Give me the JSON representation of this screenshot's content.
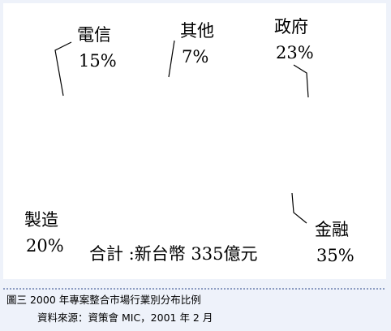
{
  "chart_data": {
    "type": "pie",
    "categories": [
      "政府",
      "金融",
      "製造",
      "電信",
      "其他"
    ],
    "values": [
      23,
      35,
      20,
      15,
      7
    ],
    "value_labels": [
      "23%",
      "35%",
      "20%",
      "15%",
      "7%"
    ],
    "colors": [
      "#000000",
      "#ffffff",
      "#6e6e6e",
      "#b4b4b4",
      "#d6d6d6"
    ],
    "annotation": "合計 :新台幣 335億元"
  },
  "caption": {
    "title": "圖三  2000 年專案整合市場行業別分布比例",
    "source": "資料來源：資策會 MIC，2001 年 2 月"
  }
}
